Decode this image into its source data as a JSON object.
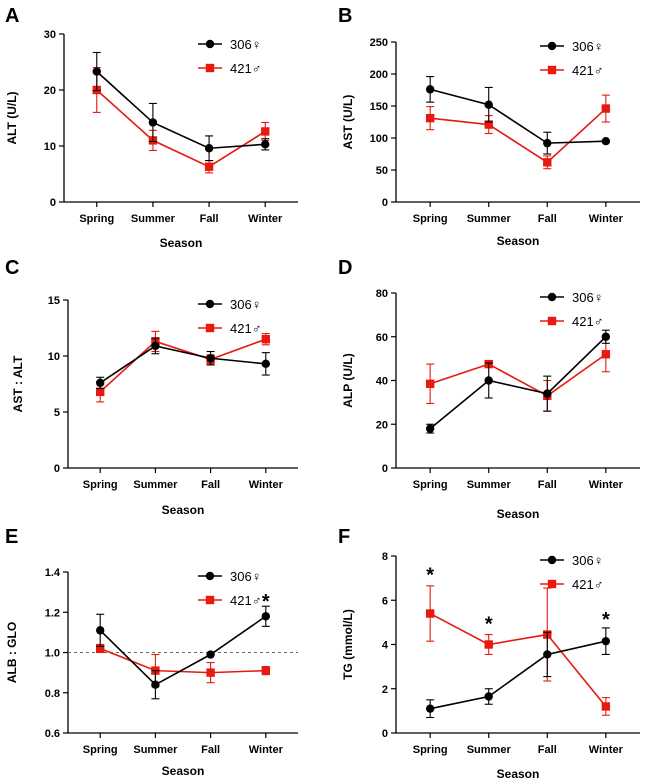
{
  "chart_data": [
    {
      "panel": "A",
      "type": "line",
      "title": "",
      "xlabel": "Season",
      "ylabel": "ALT (U/L)",
      "categories": [
        "Spring",
        "Summer",
        "Fall",
        "Winter"
      ],
      "ylim": [
        0,
        30
      ],
      "yticks": [
        0,
        10,
        20,
        30
      ],
      "ytick_labels": [
        "0",
        "10",
        "20",
        "30"
      ],
      "legend_position": "top-right",
      "legend_vertical": "middle",
      "series": [
        {
          "name": "306♀",
          "color": "#000000",
          "marker": "circle",
          "values": [
            23.3,
            14.2,
            9.6,
            10.3
          ],
          "err": [
            3.4,
            3.4,
            2.2,
            1.0
          ]
        },
        {
          "name": "421♂",
          "color": "#e8190e",
          "marker": "square",
          "values": [
            20.0,
            11.0,
            6.3,
            12.6
          ],
          "err": [
            4.0,
            1.8,
            1.1,
            1.6
          ]
        }
      ],
      "annotations": []
    },
    {
      "panel": "B",
      "type": "line",
      "title": "",
      "xlabel": "Season",
      "ylabel": "AST (U/L)",
      "categories": [
        "Spring",
        "Summer",
        "Fall",
        "Winter"
      ],
      "ylim": [
        0,
        250
      ],
      "yticks": [
        0,
        50,
        100,
        150,
        200,
        250
      ],
      "ytick_labels": [
        "0",
        "50",
        "100",
        "150",
        "200",
        "250"
      ],
      "legend_position": "top-right",
      "legend_vertical": "top",
      "series": [
        {
          "name": "306♀",
          "color": "#000000",
          "marker": "circle",
          "values": [
            176,
            152,
            92,
            95
          ],
          "err": [
            20,
            27,
            17,
            0
          ]
        },
        {
          "name": "421♂",
          "color": "#e8190e",
          "marker": "square",
          "values": [
            131,
            121,
            62,
            146
          ],
          "err": [
            18,
            14,
            10,
            21
          ]
        }
      ],
      "annotations": []
    },
    {
      "panel": "C",
      "type": "line",
      "title": "",
      "xlabel": "Season",
      "ylabel": "AST : ALT",
      "categories": [
        "Spring",
        "Summer",
        "Fall",
        "Winter"
      ],
      "ylim": [
        0,
        15
      ],
      "yticks": [
        0,
        5,
        10,
        15
      ],
      "ytick_labels": [
        "0",
        "5",
        "10",
        "15"
      ],
      "legend_position": "top-right",
      "legend_vertical": "top",
      "series": [
        {
          "name": "306♀",
          "color": "#000000",
          "marker": "circle",
          "values": [
            7.6,
            10.9,
            9.8,
            9.3
          ],
          "err": [
            0.5,
            0.7,
            0.6,
            1.0
          ]
        },
        {
          "name": "421♂",
          "color": "#e8190e",
          "marker": "square",
          "values": [
            6.8,
            11.3,
            9.7,
            11.5
          ],
          "err": [
            0.9,
            0.9,
            0.4,
            0.5
          ]
        }
      ],
      "annotations": []
    },
    {
      "panel": "D",
      "type": "line",
      "title": "",
      "xlabel": "Season",
      "ylabel": "ALP (U/L)",
      "categories": [
        "Spring",
        "Summer",
        "Fall",
        "Winter"
      ],
      "ylim": [
        0,
        80
      ],
      "yticks": [
        0,
        20,
        40,
        60,
        80
      ],
      "ytick_labels": [
        "0",
        "20",
        "40",
        "60",
        "80"
      ],
      "legend_position": "top-right",
      "legend_vertical": "top",
      "series": [
        {
          "name": "306♀",
          "color": "#000000",
          "marker": "circle",
          "values": [
            18,
            40,
            34,
            60
          ],
          "err": [
            2,
            8,
            8,
            3
          ]
        },
        {
          "name": "421♂",
          "color": "#e8190e",
          "marker": "square",
          "values": [
            38.5,
            47.5,
            33,
            52
          ],
          "err": [
            9,
            1.5,
            7,
            8
          ]
        }
      ],
      "annotations": []
    },
    {
      "panel": "E",
      "type": "line",
      "title": "",
      "xlabel": "Season",
      "ylabel": "ALB : GLO",
      "categories": [
        "Spring",
        "Summer",
        "Fall",
        "Winter"
      ],
      "ylim": [
        0.6,
        1.4
      ],
      "yticks": [
        0.6,
        0.8,
        1.0,
        1.2,
        1.4
      ],
      "ytick_labels": [
        "0.6",
        "0.8",
        "1.0",
        "1.2",
        "1.4"
      ],
      "reference_line": 1.0,
      "legend_position": "top-right",
      "legend_vertical": "top",
      "series": [
        {
          "name": "306♀",
          "color": "#000000",
          "marker": "circle",
          "values": [
            1.11,
            0.84,
            0.99,
            1.18
          ],
          "err": [
            0.08,
            0.07,
            0.0,
            0.05
          ]
        },
        {
          "name": "421♂",
          "color": "#e8190e",
          "marker": "square",
          "values": [
            1.02,
            0.91,
            0.9,
            0.91
          ],
          "err": [
            0.02,
            0.08,
            0.05,
            0.02
          ]
        }
      ],
      "annotations": [
        {
          "category": "Winter",
          "text": "*",
          "y": 1.26
        }
      ]
    },
    {
      "panel": "F",
      "type": "line",
      "title": "",
      "xlabel": "Season",
      "ylabel": "TG (mmol/L)",
      "categories": [
        "Spring",
        "Summer",
        "Fall",
        "Winter"
      ],
      "ylim": [
        0,
        8
      ],
      "yticks": [
        0,
        2,
        4,
        6,
        8
      ],
      "ytick_labels": [
        "0",
        "2",
        "4",
        "6",
        "8"
      ],
      "legend_position": "top-right",
      "legend_vertical": "top",
      "series": [
        {
          "name": "306♀",
          "color": "#000000",
          "marker": "circle",
          "values": [
            1.1,
            1.65,
            3.55,
            4.15
          ],
          "err": [
            0.4,
            0.35,
            1.0,
            0.6
          ]
        },
        {
          "name": "421♂",
          "color": "#e8190e",
          "marker": "square",
          "values": [
            5.4,
            4.0,
            4.45,
            1.2
          ],
          "err": [
            1.25,
            0.45,
            2.1,
            0.4
          ]
        }
      ],
      "annotations": [
        {
          "category": "Spring",
          "text": "*",
          "y": 7.2
        },
        {
          "category": "Summer",
          "text": "*",
          "y": 5.0
        },
        {
          "category": "Winter",
          "text": "*",
          "y": 5.2
        }
      ]
    }
  ]
}
